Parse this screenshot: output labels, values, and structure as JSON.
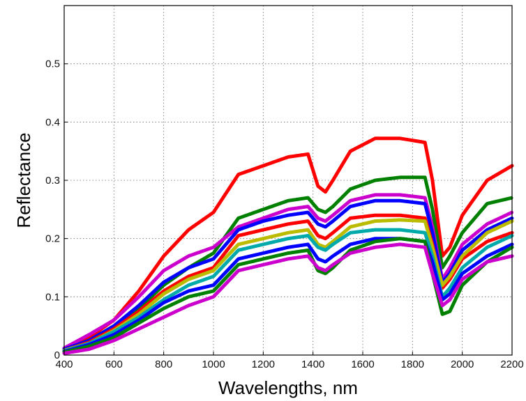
{
  "chart_data": {
    "type": "line",
    "title": "",
    "xlabel": "Wavelengths, nm",
    "ylabel": "Reflectance",
    "xlim": [
      400,
      2200
    ],
    "ylim": [
      0,
      0.6
    ],
    "grid": true,
    "x_ticks": [
      400,
      600,
      800,
      1000,
      1200,
      1400,
      1600,
      1800,
      2000,
      2200
    ],
    "x_tick_labels": [
      "400",
      "600",
      "800",
      "1000",
      "1200",
      "1400",
      "1600",
      "1800",
      "2000",
      "2200"
    ],
    "y_ticks": [
      0,
      0.1,
      0.2,
      0.3,
      0.4,
      0.5
    ],
    "y_tick_labels": [
      "0",
      "0.1",
      "0.2",
      "0.3",
      "0.4",
      "0.5"
    ],
    "x": [
      400,
      500,
      600,
      700,
      800,
      900,
      1000,
      1100,
      1200,
      1300,
      1380,
      1420,
      1450,
      1480,
      1550,
      1650,
      1750,
      1850,
      1880,
      1920,
      1950,
      2000,
      2100,
      2200
    ],
    "series": [
      {
        "color": "#ff0000",
        "values": [
          0.01,
          0.03,
          0.06,
          0.11,
          0.17,
          0.215,
          0.245,
          0.31,
          0.325,
          0.34,
          0.345,
          0.29,
          0.28,
          0.3,
          0.35,
          0.372,
          0.372,
          0.365,
          0.3,
          0.17,
          0.185,
          0.24,
          0.3,
          0.325
        ]
      },
      {
        "color": "#008000",
        "values": [
          0.01,
          0.025,
          0.05,
          0.08,
          0.12,
          0.15,
          0.175,
          0.235,
          0.25,
          0.265,
          0.27,
          0.25,
          0.245,
          0.255,
          0.285,
          0.3,
          0.305,
          0.305,
          0.25,
          0.15,
          0.17,
          0.21,
          0.26,
          0.27
        ]
      },
      {
        "color": "#cc00cc",
        "values": [
          0.012,
          0.035,
          0.06,
          0.1,
          0.145,
          0.17,
          0.185,
          0.22,
          0.235,
          0.25,
          0.255,
          0.235,
          0.23,
          0.24,
          0.265,
          0.275,
          0.275,
          0.27,
          0.22,
          0.13,
          0.15,
          0.19,
          0.225,
          0.245
        ]
      },
      {
        "color": "#0000ff",
        "values": [
          0.01,
          0.025,
          0.05,
          0.085,
          0.125,
          0.15,
          0.165,
          0.215,
          0.23,
          0.24,
          0.245,
          0.225,
          0.22,
          0.23,
          0.255,
          0.265,
          0.265,
          0.26,
          0.21,
          0.125,
          0.14,
          0.18,
          0.215,
          0.235
        ]
      },
      {
        "color": "#ff0000",
        "values": [
          0.008,
          0.022,
          0.045,
          0.075,
          0.11,
          0.135,
          0.15,
          0.205,
          0.215,
          0.225,
          0.23,
          0.205,
          0.2,
          0.21,
          0.235,
          0.24,
          0.24,
          0.235,
          0.19,
          0.115,
          0.13,
          0.165,
          0.195,
          0.21
        ]
      },
      {
        "color": "#bbbb00",
        "values": [
          0.008,
          0.02,
          0.042,
          0.07,
          0.105,
          0.13,
          0.145,
          0.19,
          0.2,
          0.21,
          0.215,
          0.19,
          0.185,
          0.195,
          0.22,
          0.23,
          0.232,
          0.23,
          0.185,
          0.12,
          0.135,
          0.17,
          0.21,
          0.23
        ]
      },
      {
        "color": "#00aaaa",
        "values": [
          0.007,
          0.02,
          0.04,
          0.065,
          0.095,
          0.12,
          0.135,
          0.18,
          0.19,
          0.2,
          0.205,
          0.185,
          0.18,
          0.19,
          0.21,
          0.215,
          0.215,
          0.21,
          0.17,
          0.1,
          0.115,
          0.15,
          0.185,
          0.205
        ]
      },
      {
        "color": "#0000ff",
        "values": [
          0.006,
          0.018,
          0.035,
          0.06,
          0.09,
          0.11,
          0.12,
          0.165,
          0.175,
          0.185,
          0.19,
          0.165,
          0.16,
          0.17,
          0.19,
          0.2,
          0.2,
          0.195,
          0.16,
          0.095,
          0.105,
          0.14,
          0.17,
          0.19
        ]
      },
      {
        "color": "#008000",
        "values": [
          0.005,
          0.015,
          0.03,
          0.055,
          0.08,
          0.1,
          0.11,
          0.155,
          0.165,
          0.175,
          0.18,
          0.145,
          0.14,
          0.15,
          0.18,
          0.195,
          0.2,
          0.195,
          0.14,
          0.07,
          0.075,
          0.12,
          0.16,
          0.185
        ]
      },
      {
        "color": "#cc00cc",
        "values": [
          0.003,
          0.01,
          0.025,
          0.045,
          0.065,
          0.085,
          0.1,
          0.145,
          0.155,
          0.165,
          0.17,
          0.15,
          0.145,
          0.155,
          0.175,
          0.185,
          0.19,
          0.185,
          0.14,
          0.085,
          0.095,
          0.13,
          0.16,
          0.17
        ]
      }
    ]
  }
}
